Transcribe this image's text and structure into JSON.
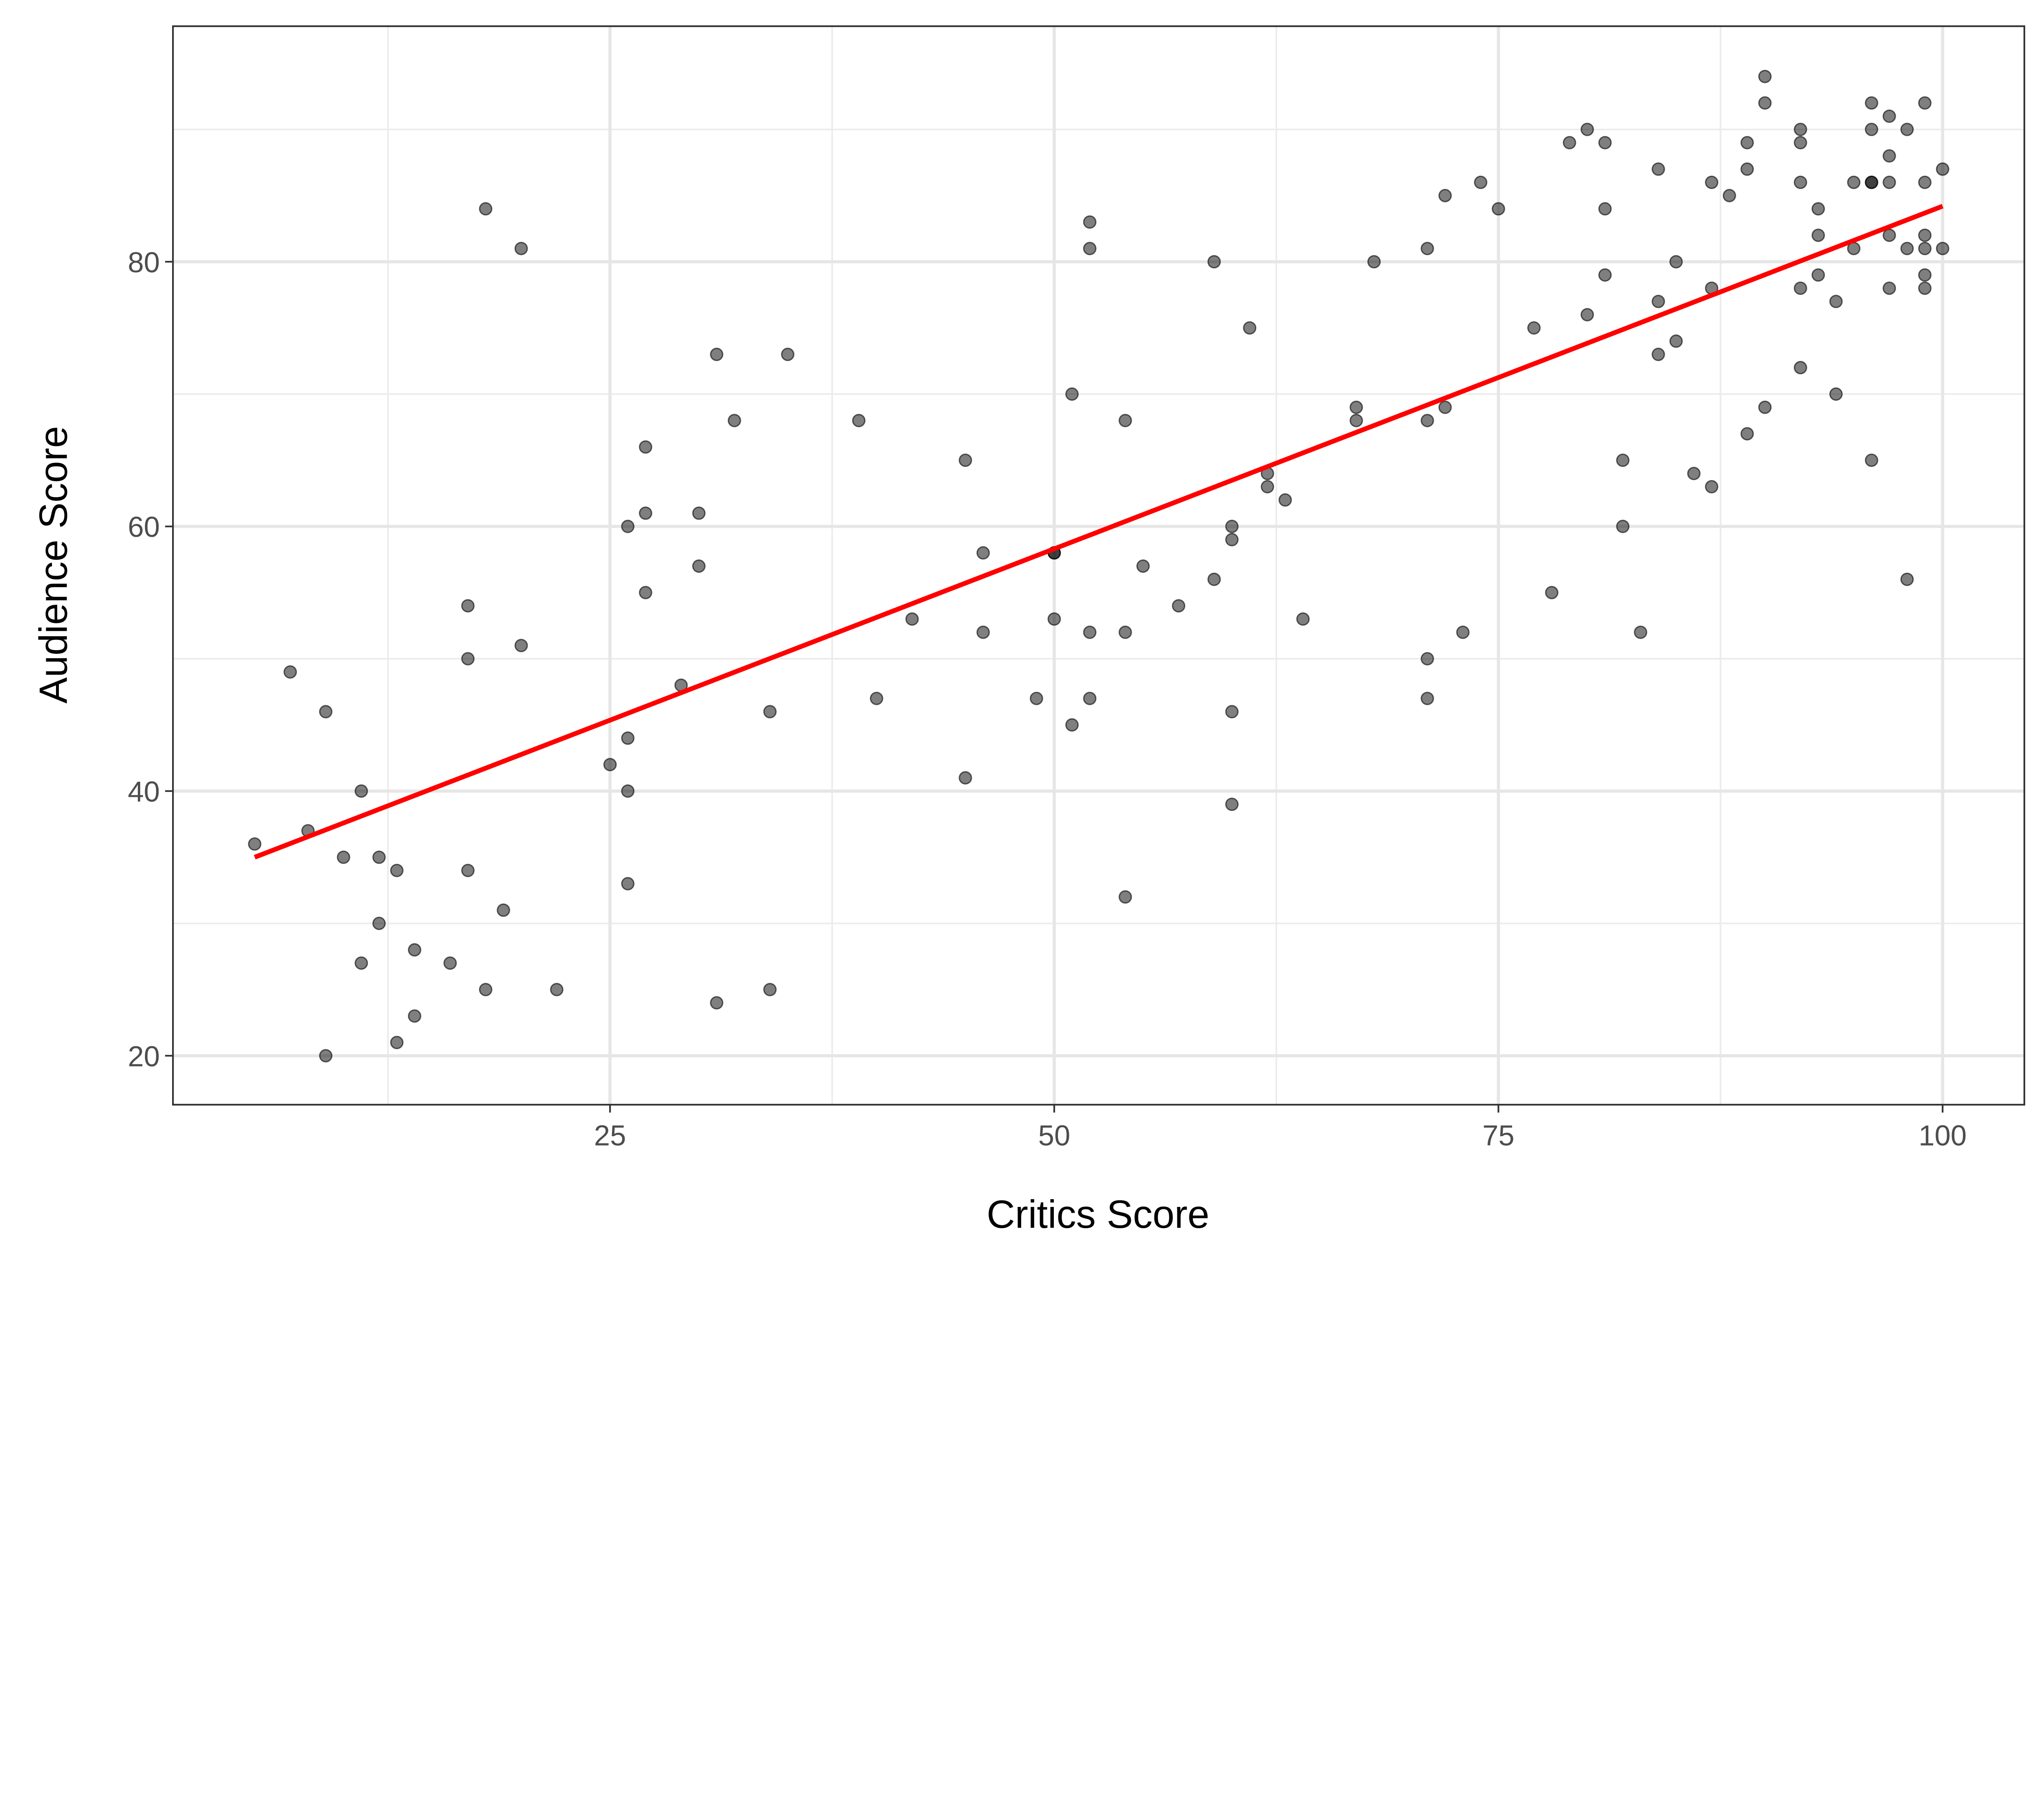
{
  "chart_data": {
    "type": "scatter",
    "title": "",
    "xlabel": "Critics Score",
    "ylabel": "Audience Score",
    "xlim": [
      0.4,
      104.6
    ],
    "ylim": [
      16.3,
      97.8
    ],
    "grid": true,
    "x_ticks": [
      25,
      50,
      75,
      100
    ],
    "y_ticks": [
      20,
      40,
      60,
      80
    ],
    "x_minor": [
      12.5,
      37.5,
      62.5,
      87.5
    ],
    "y_minor": [
      30,
      50,
      70,
      90
    ],
    "point_color": "#000000",
    "point_alpha": 0.5,
    "fit_line": {
      "type": "linear",
      "color": "#ff0000",
      "x": [
        5,
        100
      ],
      "y": [
        35.0,
        84.2
      ]
    },
    "points": [
      [
        5,
        36
      ],
      [
        7,
        49
      ],
      [
        8,
        37
      ],
      [
        9,
        46
      ],
      [
        9,
        20
      ],
      [
        10,
        35
      ],
      [
        11,
        40
      ],
      [
        11,
        27
      ],
      [
        12,
        35
      ],
      [
        12,
        30
      ],
      [
        13,
        34
      ],
      [
        13,
        21
      ],
      [
        14,
        28
      ],
      [
        14,
        23
      ],
      [
        16,
        27
      ],
      [
        17,
        54
      ],
      [
        17,
        50
      ],
      [
        17,
        34
      ],
      [
        18,
        84
      ],
      [
        18,
        25
      ],
      [
        19,
        31
      ],
      [
        20,
        81
      ],
      [
        20,
        51
      ],
      [
        22,
        25
      ],
      [
        25,
        42
      ],
      [
        26,
        60
      ],
      [
        26,
        44
      ],
      [
        26,
        40
      ],
      [
        26,
        33
      ],
      [
        27,
        66
      ],
      [
        27,
        61
      ],
      [
        27,
        55
      ],
      [
        29,
        48
      ],
      [
        30,
        61
      ],
      [
        30,
        57
      ],
      [
        31,
        73
      ],
      [
        31,
        24
      ],
      [
        32,
        68
      ],
      [
        34,
        46
      ],
      [
        34,
        25
      ],
      [
        35,
        73
      ],
      [
        39,
        68
      ],
      [
        40,
        47
      ],
      [
        42,
        53
      ],
      [
        45,
        65
      ],
      [
        45,
        41
      ],
      [
        46,
        58
      ],
      [
        46,
        52
      ],
      [
        49,
        47
      ],
      [
        50,
        58
      ],
      [
        50,
        58
      ],
      [
        50,
        53
      ],
      [
        51,
        70
      ],
      [
        51,
        45
      ],
      [
        52,
        83
      ],
      [
        52,
        81
      ],
      [
        52,
        52
      ],
      [
        52,
        47
      ],
      [
        54,
        68
      ],
      [
        54,
        52
      ],
      [
        54,
        32
      ],
      [
        55,
        57
      ],
      [
        57,
        54
      ],
      [
        59,
        80
      ],
      [
        59,
        56
      ],
      [
        60,
        60
      ],
      [
        60,
        59
      ],
      [
        60,
        46
      ],
      [
        60,
        39
      ],
      [
        61,
        75
      ],
      [
        62,
        64
      ],
      [
        62,
        63
      ],
      [
        63,
        62
      ],
      [
        64,
        53
      ],
      [
        67,
        69
      ],
      [
        67,
        68
      ],
      [
        68,
        80
      ],
      [
        71,
        81
      ],
      [
        71,
        68
      ],
      [
        71,
        50
      ],
      [
        71,
        47
      ],
      [
        72,
        85
      ],
      [
        72,
        69
      ],
      [
        73,
        52
      ],
      [
        74,
        86
      ],
      [
        75,
        84
      ],
      [
        77,
        75
      ],
      [
        78,
        55
      ],
      [
        79,
        89
      ],
      [
        80,
        90
      ],
      [
        80,
        76
      ],
      [
        81,
        89
      ],
      [
        81,
        84
      ],
      [
        81,
        79
      ],
      [
        82,
        65
      ],
      [
        82,
        60
      ],
      [
        83,
        52
      ],
      [
        84,
        87
      ],
      [
        84,
        77
      ],
      [
        84,
        73
      ],
      [
        85,
        80
      ],
      [
        85,
        74
      ],
      [
        86,
        64
      ],
      [
        87,
        86
      ],
      [
        87,
        78
      ],
      [
        87,
        63
      ],
      [
        88,
        85
      ],
      [
        89,
        89
      ],
      [
        89,
        87
      ],
      [
        89,
        67
      ],
      [
        90,
        94
      ],
      [
        90,
        92
      ],
      [
        90,
        69
      ],
      [
        92,
        90
      ],
      [
        92,
        89
      ],
      [
        92,
        86
      ],
      [
        92,
        78
      ],
      [
        92,
        72
      ],
      [
        93,
        84
      ],
      [
        93,
        82
      ],
      [
        93,
        79
      ],
      [
        94,
        77
      ],
      [
        94,
        70
      ],
      [
        95,
        86
      ],
      [
        95,
        81
      ],
      [
        96,
        92
      ],
      [
        96,
        90
      ],
      [
        96,
        86
      ],
      [
        96,
        86
      ],
      [
        96,
        65
      ],
      [
        97,
        91
      ],
      [
        97,
        88
      ],
      [
        97,
        86
      ],
      [
        97,
        82
      ],
      [
        97,
        78
      ],
      [
        98,
        90
      ],
      [
        98,
        81
      ],
      [
        98,
        56
      ],
      [
        99,
        92
      ],
      [
        99,
        86
      ],
      [
        99,
        82
      ],
      [
        99,
        81
      ],
      [
        99,
        79
      ],
      [
        99,
        78
      ],
      [
        100,
        87
      ],
      [
        100,
        81
      ]
    ]
  }
}
